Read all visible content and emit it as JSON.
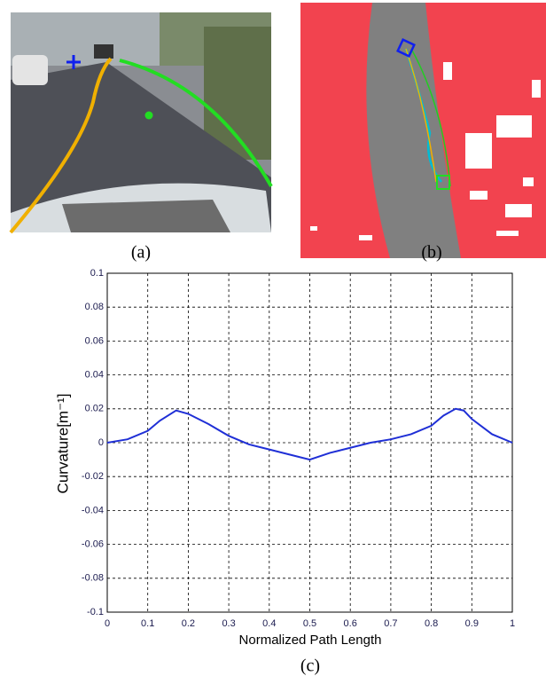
{
  "panels": {
    "a": "(a)",
    "b": "(b)"
  },
  "chart_data": {
    "type": "line",
    "caption": "(c)",
    "x_label": "Normalized Path Length",
    "y_label": "Curvature[m⁻¹]",
    "xlim": [
      0,
      1
    ],
    "ylim": [
      -0.1,
      0.1
    ],
    "xticks": [
      0,
      0.1,
      0.2,
      0.3,
      0.4,
      0.5,
      0.6,
      0.7,
      0.8,
      0.9,
      1
    ],
    "yticks": [
      -0.1,
      -0.08,
      -0.06,
      -0.04,
      -0.02,
      0,
      0.02,
      0.04,
      0.06,
      0.08,
      0.1
    ],
    "grid": true,
    "x": [
      0,
      0.05,
      0.1,
      0.13,
      0.17,
      0.2,
      0.25,
      0.3,
      0.35,
      0.4,
      0.45,
      0.5,
      0.55,
      0.6,
      0.65,
      0.7,
      0.75,
      0.8,
      0.83,
      0.86,
      0.88,
      0.9,
      0.95,
      1
    ],
    "series": [
      {
        "color": "#1f2fd6",
        "values": [
          0,
          0.002,
          0.007,
          0.013,
          0.019,
          0.017,
          0.011,
          0.004,
          -0.001,
          -0.004,
          -0.007,
          -0.01,
          -0.006,
          -0.003,
          0,
          0.002,
          0.005,
          0.01,
          0.016,
          0.02,
          0.019,
          0.014,
          0.005,
          0
        ]
      }
    ]
  }
}
